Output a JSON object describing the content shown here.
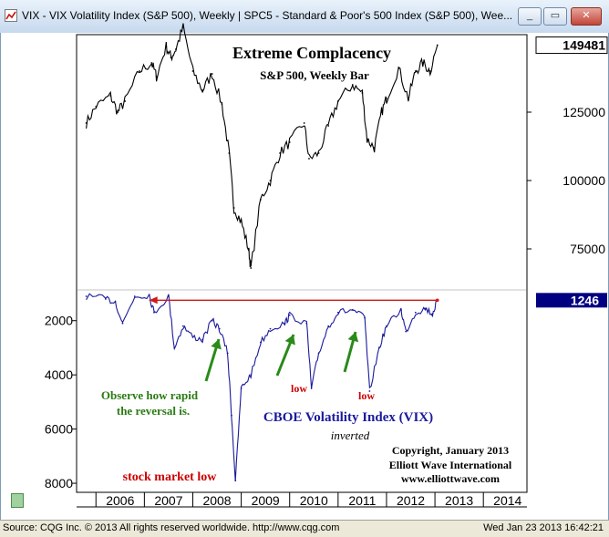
{
  "window": {
    "title": "VIX - VIX Volatility Index (S&P 500), Weekly   |   SPC5 - Standard & Poor's 500 Index (S&P 500), Wee...",
    "minimize_glyph": "▭",
    "restore_glyph": "▭",
    "close_glyph": "✕"
  },
  "status": {
    "left": "Source: CQG Inc. © 2013 All rights reserved worldwide. http://www.cqg.com",
    "right": "Wed Jan 23 2013 16:42:21"
  },
  "colors": {
    "spx_line": "#000000",
    "vix_line": "#1a1a9c",
    "red_line": "#d01818",
    "green_arrow": "#2a8a1a",
    "title_text": "#000000",
    "vix_label": "#1a1a9c",
    "annotation_green": "#2a7a12",
    "annotation_red": "#cc0000",
    "highlight_box": "#000080"
  },
  "chart_data": [
    {
      "type": "line",
      "title": "Extreme Complacency",
      "subtitle": "S&P 500, Weekly Bar",
      "y_ticks": [
        75000,
        100000,
        125000
      ],
      "y_tick_labels": [
        "75000",
        "100000",
        "125000"
      ],
      "ylim": [
        62000,
        152000
      ],
      "last_value": 149481,
      "last_value_label": "149481",
      "x": [
        2005.8,
        2006.0,
        2006.3,
        2006.45,
        2006.6,
        2006.9,
        2007.15,
        2007.25,
        2007.45,
        2007.55,
        2007.65,
        2007.8,
        2008.0,
        2008.2,
        2008.4,
        2008.6,
        2008.75,
        2008.85,
        2009.0,
        2009.15,
        2009.2,
        2009.4,
        2009.6,
        2009.8,
        2010.0,
        2010.3,
        2010.4,
        2010.6,
        2010.8,
        2011.0,
        2011.3,
        2011.5,
        2011.6,
        2011.75,
        2011.9,
        2012.0,
        2012.25,
        2012.45,
        2012.6,
        2012.75,
        2012.9,
        2013.05
      ],
      "values": [
        121000,
        127000,
        131000,
        125000,
        129000,
        140000,
        143000,
        138000,
        149000,
        145000,
        148000,
        156000,
        140000,
        133000,
        139000,
        128000,
        110000,
        90000,
        85000,
        75000,
        68000,
        93000,
        100000,
        110000,
        114000,
        121000,
        108000,
        110000,
        120000,
        129000,
        135000,
        132000,
        115000,
        112000,
        125000,
        130000,
        141000,
        130000,
        140000,
        143000,
        140000,
        149481
      ]
    },
    {
      "type": "line",
      "title": "CBOE Volatility Index (VIX)",
      "subtitle": "inverted",
      "inverted": true,
      "y_ticks": [
        2000,
        4000,
        6000,
        8000
      ],
      "y_tick_labels": [
        "2000",
        "4000",
        "6000",
        "8000"
      ],
      "ylim": [
        1000,
        8200
      ],
      "last_value": 1246,
      "last_value_label": "1246",
      "x_tick_labels": [
        "2006",
        "2007",
        "2008",
        "2009",
        "2010",
        "2011",
        "2012",
        "2013",
        "2014"
      ],
      "x": [
        2005.8,
        2006.2,
        2006.4,
        2006.55,
        2006.8,
        2007.1,
        2007.2,
        2007.5,
        2007.62,
        2007.8,
        2008.0,
        2008.2,
        2008.4,
        2008.55,
        2008.72,
        2008.8,
        2008.88,
        2009.0,
        2009.2,
        2009.4,
        2009.6,
        2009.9,
        2010.0,
        2010.35,
        2010.45,
        2010.6,
        2010.8,
        2011.0,
        2011.3,
        2011.55,
        2011.65,
        2011.85,
        2012.0,
        2012.3,
        2012.4,
        2012.6,
        2012.8,
        2012.95,
        2013.05
      ],
      "values": [
        1100,
        1200,
        1300,
        2100,
        1100,
        1050,
        1700,
        1100,
        3000,
        2200,
        2600,
        2700,
        2000,
        2300,
        3200,
        5500,
        7900,
        4500,
        4000,
        2800,
        2300,
        2100,
        1800,
        2100,
        4500,
        3200,
        2200,
        1700,
        1600,
        1900,
        4600,
        3000,
        2200,
        1600,
        2400,
        1700,
        1550,
        1750,
        1246
      ]
    }
  ],
  "annotations": {
    "reversal_note": "Observe how rapid the reversal is.",
    "reversal_line1": "Observe how rapid",
    "reversal_line2": "the reversal is.",
    "low_label": "low",
    "stock_market_low": "stock market low",
    "copyright_line1": "Copyright, January 2013",
    "copyright_line2": "Elliott Wave International",
    "copyright_line3": "www.elliottwave.com"
  }
}
